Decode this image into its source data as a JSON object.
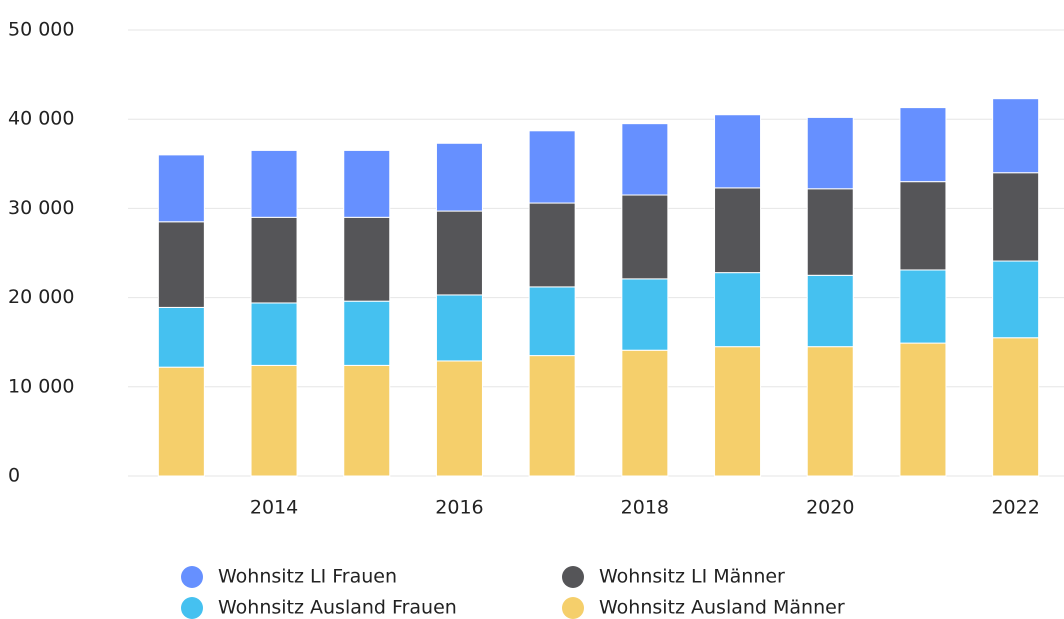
{
  "chart_data": {
    "type": "bar",
    "stacked": true,
    "categories": [
      null,
      "2014",
      null,
      "2016",
      null,
      "2018",
      null,
      "2020",
      null,
      "2022"
    ],
    "series": [
      {
        "name": "Wohnsitz Ausland Männer",
        "color": "#f5cf6b",
        "values": [
          12200,
          12400,
          12400,
          12900,
          13500,
          14100,
          14500,
          14500,
          14900,
          15500
        ]
      },
      {
        "name": "Wohnsitz Ausland Frauen",
        "color": "#45c1f0",
        "values": [
          6700,
          7000,
          7200,
          7400,
          7700,
          8000,
          8300,
          8000,
          8200,
          8600
        ]
      },
      {
        "name": "Wohnsitz LI Männer",
        "color": "#555558",
        "values": [
          9600,
          9600,
          9400,
          9400,
          9400,
          9400,
          9500,
          9700,
          9900,
          9900
        ]
      },
      {
        "name": "Wohnsitz LI Frauen",
        "color": "#6690ff",
        "values": [
          7500,
          7500,
          7500,
          7600,
          8100,
          8000,
          8200,
          8000,
          8300,
          8300
        ]
      }
    ],
    "ylim": [
      0,
      50000
    ],
    "yticks": [
      0,
      {
        "value": 10000,
        "label": "10 000"
      },
      {
        "value": 20000,
        "label": "20 000"
      },
      {
        "value": 30000,
        "label": "30 000"
      },
      {
        "value": 40000,
        "label": "40 000"
      },
      {
        "value": 50000,
        "label": "50 000"
      }
    ],
    "grid": true
  }
}
